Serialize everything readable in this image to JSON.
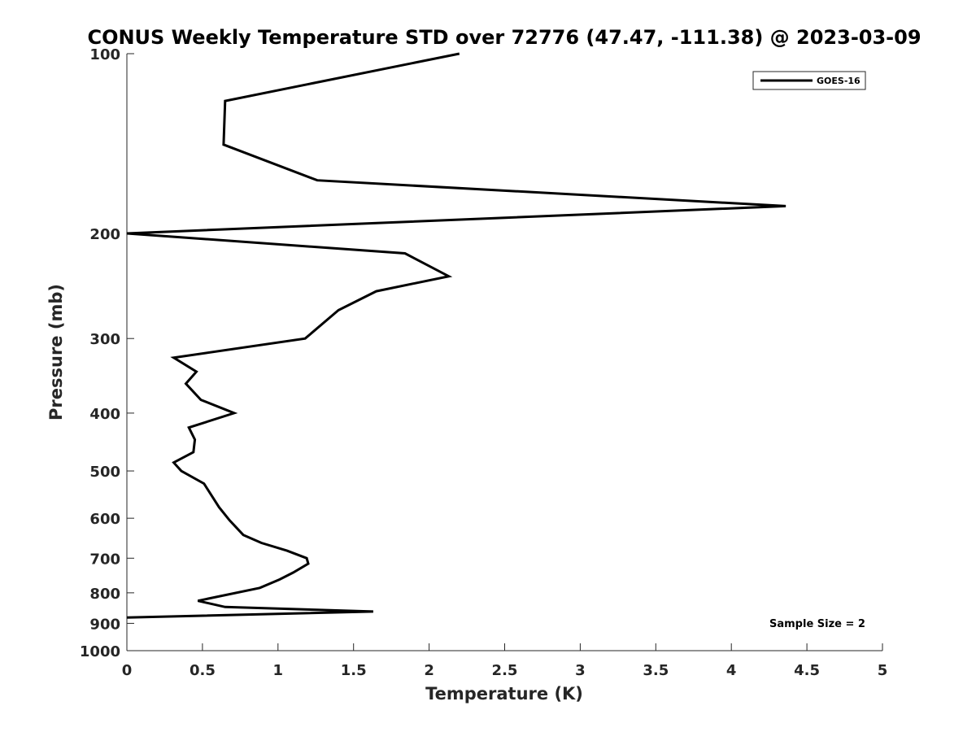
{
  "chart_data": {
    "type": "line",
    "title": "CONUS Weekly Temperature STD over 72776 (47.47, -111.38) @ 2023-03-09",
    "xlabel": "Temperature (K)",
    "ylabel": "Pressure (mb)",
    "xlim": [
      0,
      5
    ],
    "ylim": [
      100,
      1000
    ],
    "y_scale": "log",
    "y_reversed": true,
    "x_ticks": [
      0,
      0.5,
      1,
      1.5,
      2,
      2.5,
      3,
      3.5,
      4,
      4.5,
      5
    ],
    "x_tick_labels": [
      "0",
      "0.5",
      "1",
      "1.5",
      "2",
      "2.5",
      "3",
      "3.5",
      "4",
      "4.5",
      "5"
    ],
    "y_ticks": [
      100,
      200,
      300,
      400,
      500,
      600,
      700,
      800,
      900,
      1000
    ],
    "y_tick_labels": [
      "100",
      "200",
      "300",
      "400",
      "500",
      "600",
      "700",
      "800",
      "900",
      "1000"
    ],
    "grid": false,
    "legend_position": "top-right",
    "series": [
      {
        "name": "GOES-16",
        "color": "#000000",
        "points": [
          [
            2.2,
            100
          ],
          [
            0.65,
            120
          ],
          [
            0.64,
            142
          ],
          [
            1.26,
            163
          ],
          [
            4.36,
            180
          ],
          [
            0.0,
            200
          ],
          [
            1.84,
            216
          ],
          [
            2.13,
            236
          ],
          [
            1.65,
            250
          ],
          [
            1.4,
            269
          ],
          [
            1.18,
            300
          ],
          [
            0.31,
            323
          ],
          [
            0.46,
            341
          ],
          [
            0.39,
            357
          ],
          [
            0.49,
            380
          ],
          [
            0.71,
            400
          ],
          [
            0.41,
            423
          ],
          [
            0.45,
            443
          ],
          [
            0.44,
            465
          ],
          [
            0.31,
            484
          ],
          [
            0.36,
            500
          ],
          [
            0.51,
            525
          ],
          [
            0.61,
            575
          ],
          [
            0.68,
            605
          ],
          [
            0.77,
            640
          ],
          [
            0.89,
            660
          ],
          [
            1.06,
            680
          ],
          [
            1.19,
            700
          ],
          [
            1.2,
            715
          ],
          [
            1.1,
            740
          ],
          [
            1.01,
            760
          ],
          [
            0.88,
            785
          ],
          [
            0.47,
            825
          ],
          [
            0.65,
            845
          ],
          [
            1.63,
            860
          ],
          [
            0.0,
            880
          ]
        ]
      }
    ],
    "annotations": [
      "Sample Size = 2"
    ]
  }
}
